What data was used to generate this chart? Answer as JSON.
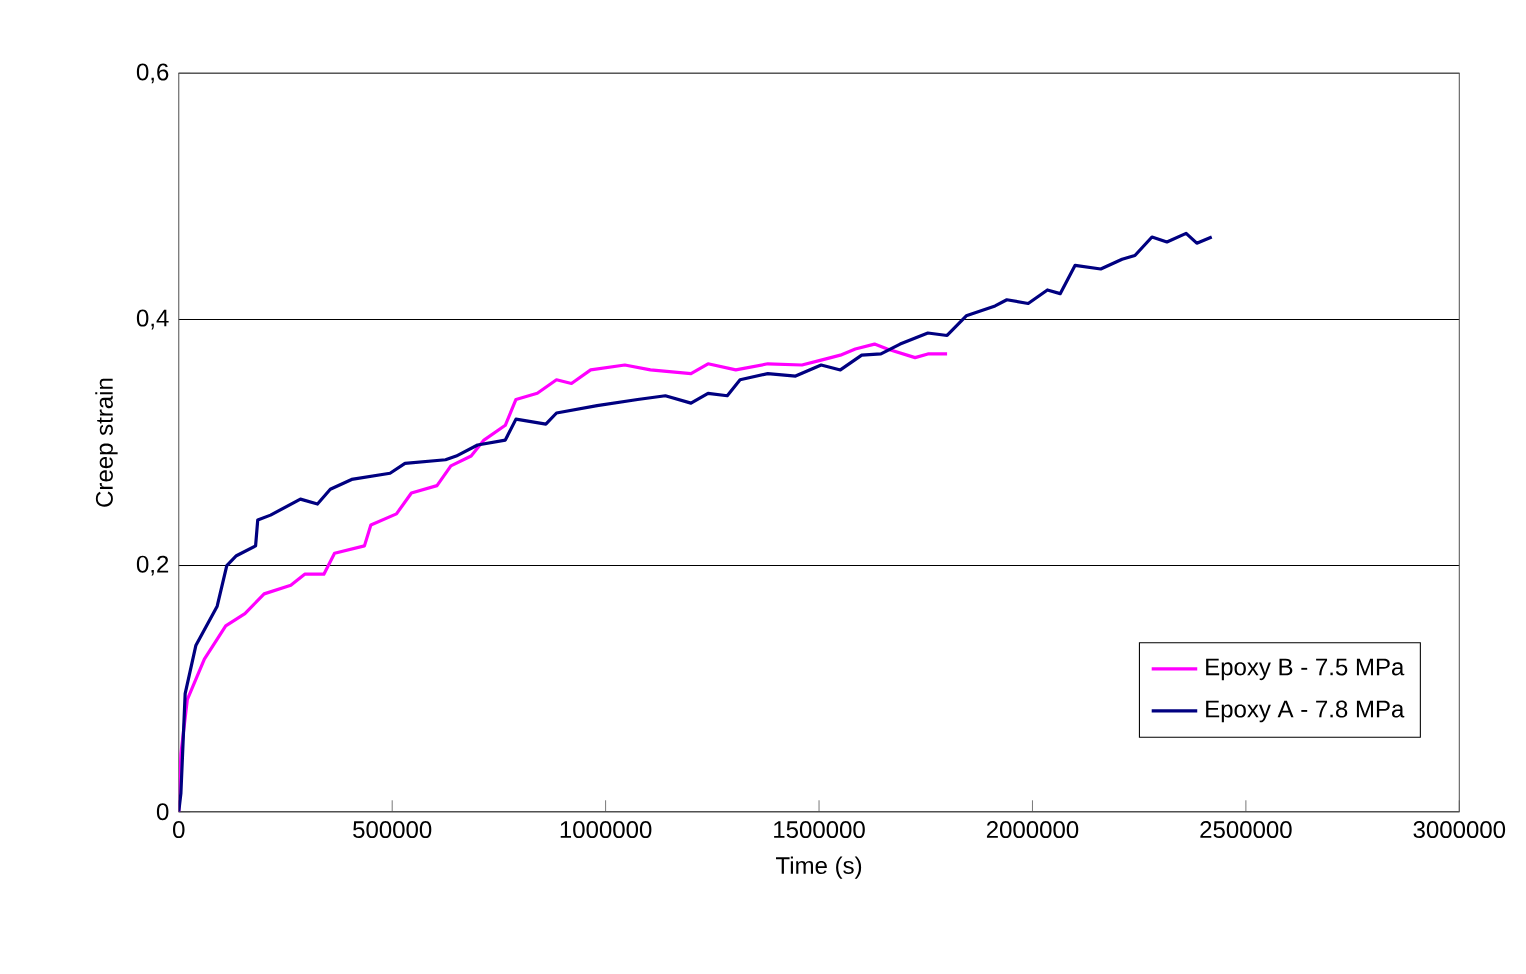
{
  "chart_data": {
    "type": "line",
    "xlabel": "Time (s)",
    "ylabel": "Creep strain",
    "xlim": [
      0,
      3000000
    ],
    "xticks": [
      0,
      500000,
      1000000,
      1500000,
      2000000,
      2500000,
      3000000
    ],
    "ylim": [
      0,
      0.6
    ],
    "yticks": [
      0,
      {
        "value": 0.2,
        "label": "0,2"
      },
      {
        "value": 0.4,
        "label": "0,4"
      },
      {
        "value": 0.6,
        "label": "0,6"
      }
    ],
    "grid": "y",
    "legend": "bottom right",
    "marker": "none",
    "series": [
      {
        "name": "Epoxy B - 7.5 MPa",
        "color": "#ff00ff",
        "x": [
          0,
          5000,
          20000,
          60000,
          110000,
          155000,
          200000,
          262500,
          295000,
          340000,
          365000,
          435000,
          450000,
          510000,
          545000,
          605000,
          637500,
          685000,
          715000,
          765000,
          790000,
          840000,
          885000,
          920000,
          965000,
          1045000,
          1105000,
          1200000,
          1240000,
          1305000,
          1380000,
          1460000,
          1505000,
          1550000,
          1585000,
          1630000,
          1660000,
          1725000,
          1755000,
          1800000
        ],
        "values": [
          0,
          0.047,
          0.091,
          0.124,
          0.151,
          0.161,
          0.177,
          0.184,
          0.193,
          0.193,
          0.21,
          0.216,
          0.233,
          0.242,
          0.259,
          0.265,
          0.281,
          0.289,
          0.302,
          0.314,
          0.335,
          0.34,
          0.351,
          0.348,
          0.359,
          0.363,
          0.359,
          0.356,
          0.364,
          0.359,
          0.364,
          0.363,
          0.367,
          0.371,
          0.376,
          0.38,
          0.376,
          0.369,
          0.372,
          0.372
        ]
      },
      {
        "name": "Epoxy A - 7.8 MPa",
        "color": "#000080",
        "x": [
          0,
          5000,
          15000,
          40000,
          90000,
          112500,
          135000,
          180000,
          185000,
          215000,
          285000,
          325000,
          355000,
          405000,
          495000,
          530000,
          625000,
          650000,
          700000,
          765000,
          790000,
          860000,
          885000,
          980000,
          1075000,
          1140000,
          1200000,
          1240000,
          1285000,
          1315000,
          1380000,
          1445000,
          1505000,
          1550000,
          1600000,
          1645000,
          1690000,
          1755000,
          1800000,
          1845000,
          1912500,
          1940000,
          1990000,
          2035000,
          2065000,
          2100000,
          2160000,
          2210000,
          2240000,
          2280000,
          2315000,
          2360000,
          2385000,
          2420000
        ],
        "values": [
          0,
          0.015,
          0.096,
          0.135,
          0.167,
          0.2,
          0.208,
          0.216,
          0.237,
          0.241,
          0.254,
          0.25,
          0.262,
          0.27,
          0.275,
          0.283,
          0.286,
          0.289,
          0.298,
          0.302,
          0.319,
          0.315,
          0.324,
          0.33,
          0.335,
          0.338,
          0.332,
          0.34,
          0.338,
          0.351,
          0.356,
          0.354,
          0.363,
          0.359,
          0.371,
          0.372,
          0.38,
          0.389,
          0.387,
          0.403,
          0.411,
          0.416,
          0.413,
          0.424,
          0.421,
          0.444,
          0.441,
          0.449,
          0.452,
          0.467,
          0.463,
          0.47,
          0.462,
          0.467
        ]
      }
    ]
  }
}
